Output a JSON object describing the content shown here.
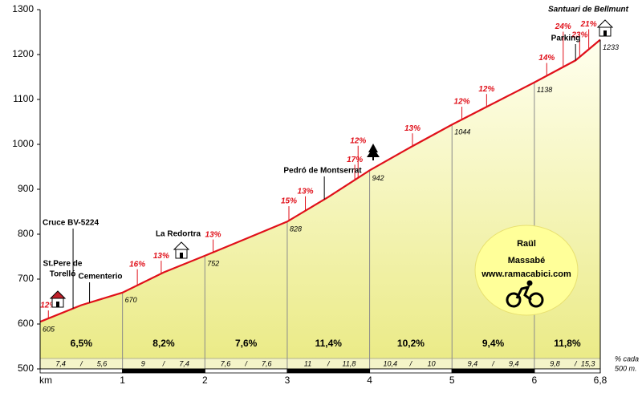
{
  "chart_data": {
    "type": "area",
    "x_label": "km",
    "xlim": [
      0,
      6.8
    ],
    "ylim": [
      500,
      1300
    ],
    "yticks": [
      500,
      600,
      700,
      800,
      900,
      1000,
      1100,
      1200,
      1300
    ],
    "xticks": [
      1,
      2,
      3,
      4,
      5,
      6,
      {
        "value": 6.8,
        "label": "6,8"
      }
    ],
    "profile": {
      "color": "#e0101a",
      "x": [
        0,
        0.5,
        1,
        1.5,
        2,
        2.5,
        3,
        3.5,
        4,
        4.5,
        5,
        5.5,
        6,
        6.5,
        6.8
      ],
      "values": [
        605,
        642,
        670,
        715,
        752,
        790,
        828,
        883,
        942,
        994,
        1044,
        1091,
        1138,
        1187,
        1233
      ]
    },
    "checkpoints": {
      "x": [
        0,
        1,
        2,
        3,
        4,
        5,
        6,
        6.8
      ],
      "values": [
        605,
        670,
        752,
        828,
        942,
        1044,
        1138,
        1233
      ]
    },
    "km_gradients": {
      "values": [
        6.5,
        8.2,
        7.6,
        11.4,
        10.2,
        9.4,
        11.8
      ],
      "value_labels": [
        "6,5%",
        "8,2%",
        "7,6%",
        "11,4%",
        "10,2%",
        "9,4%",
        "11,8%"
      ]
    },
    "half_km_gradients": {
      "values": [
        7.4,
        5.6,
        9,
        7.4,
        7.6,
        7.6,
        11,
        11.8,
        10.4,
        10,
        9.4,
        9.4,
        9.8,
        15.3
      ],
      "value_labels": [
        "7,4",
        "5,6",
        "9",
        "7,4",
        "7,6",
        "7,6",
        "11",
        "11,8",
        "10,4",
        "10",
        "9,4",
        "9,4",
        "9,8",
        "15,3"
      ]
    },
    "half_km_note": [
      "% cada",
      "500 m."
    ],
    "steep_sections": {
      "x": [
        0.1,
        1.18,
        1.47,
        2.1,
        3.02,
        3.22,
        3.82,
        3.86,
        4.52,
        5.12,
        5.42,
        6.15,
        6.35,
        6.55,
        6.66
      ],
      "values": [
        12,
        16,
        13,
        13,
        15,
        13,
        17,
        12,
        13,
        12,
        12,
        14,
        24,
        23,
        21
      ],
      "value_labels": [
        "12%",
        "16%",
        "13%",
        "13%",
        "15%",
        "13%",
        "17%",
        "12%",
        "13%",
        "12%",
        "12%",
        "14%",
        "24%",
        "23%",
        "21%"
      ]
    },
    "places": [
      {
        "lines": [
          "Cruce BV-5224"
        ],
        "x": 0.4
      },
      {
        "lines": [
          "St.Pere de",
          "Torelló"
        ],
        "x": 0.2
      },
      {
        "lines": [
          "Cementerio"
        ],
        "x": 0.6
      },
      {
        "lines": [
          "La Redortra"
        ],
        "x": 1.7
      },
      {
        "lines": [
          "Pedró de Montserrat"
        ],
        "x": 3.45
      },
      {
        "lines": [
          "Parking"
        ],
        "x": 6.5
      },
      {
        "lines": [
          "Santuari de Bellmunt"
        ],
        "x": 6.8
      }
    ],
    "logo": [
      "Raül",
      "Massabé",
      "www.ramacabici.com"
    ]
  }
}
